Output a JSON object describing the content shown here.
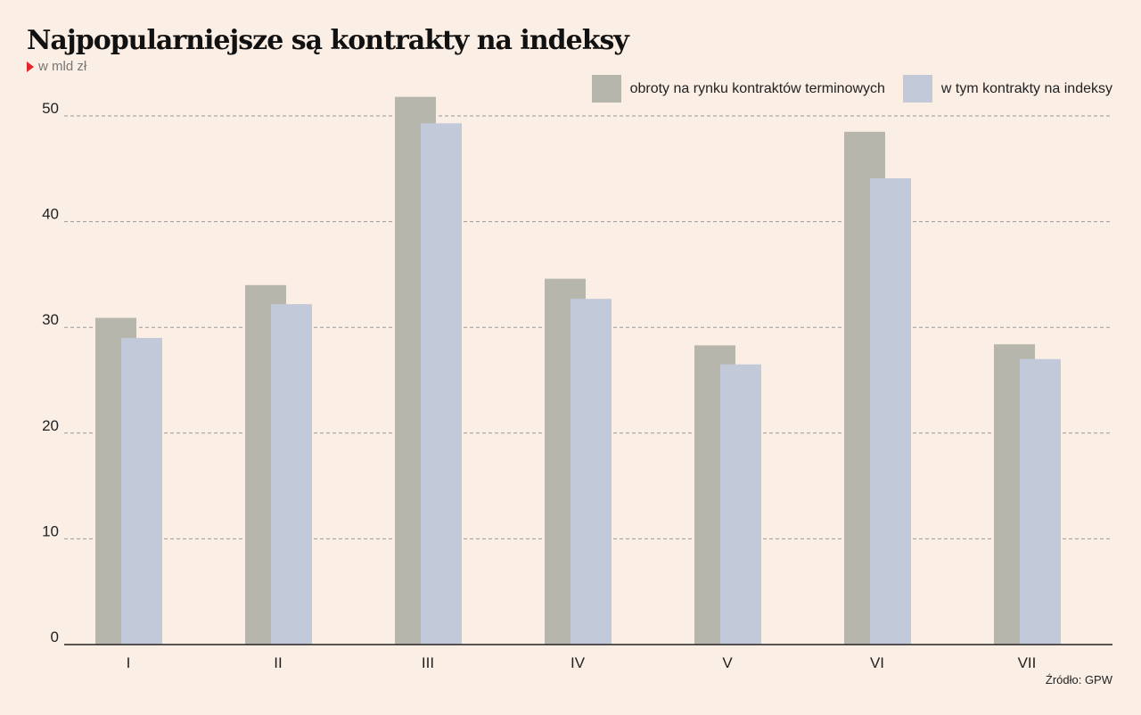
{
  "title": "Najpopularniejsze są kontrakty na indeksy",
  "subtitle": "w mld zł",
  "source": "Źródło: GPW",
  "chart_data": {
    "type": "bar",
    "categories": [
      "I",
      "II",
      "III",
      "IV",
      "V",
      "VI",
      "VII"
    ],
    "series": [
      {
        "name": "obroty na rynku kontraktów terminowych",
        "color": "#B7B6AC",
        "values": [
          30.9,
          34.0,
          51.8,
          34.6,
          28.3,
          48.5,
          28.4
        ]
      },
      {
        "name": "w tym kontrakty na indeksy",
        "color": "#C2C9D9",
        "values": [
          29.0,
          32.2,
          49.3,
          32.7,
          26.5,
          44.1,
          27.0
        ]
      }
    ],
    "yticks": [
      0,
      10,
      20,
      30,
      40,
      50
    ],
    "ylim": [
      0,
      55
    ],
    "grid": true,
    "legend": "top-right"
  }
}
